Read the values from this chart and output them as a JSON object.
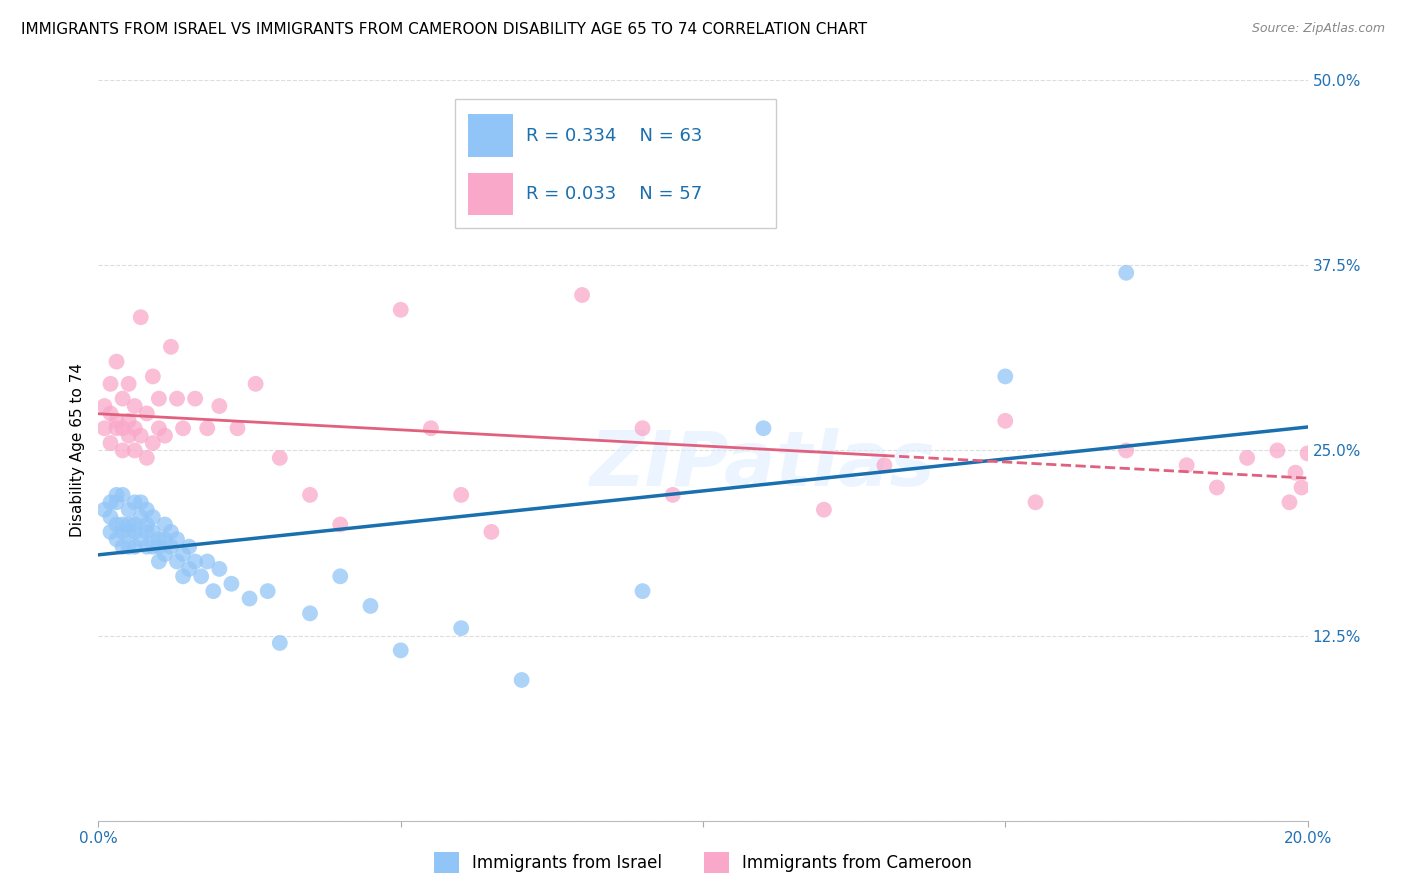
{
  "title": "IMMIGRANTS FROM ISRAEL VS IMMIGRANTS FROM CAMEROON DISABILITY AGE 65 TO 74 CORRELATION CHART",
  "source": "Source: ZipAtlas.com",
  "ylabel": "Disability Age 65 to 74",
  "xmin": 0.0,
  "xmax": 0.2,
  "ymin": 0.0,
  "ymax": 0.5,
  "xticks": [
    0.0,
    0.05,
    0.1,
    0.15,
    0.2
  ],
  "xtick_labels": [
    "0.0%",
    "",
    "",
    "",
    "20.0%"
  ],
  "yticks": [
    0.0,
    0.125,
    0.25,
    0.375,
    0.5
  ],
  "ytick_labels": [
    "",
    "12.5%",
    "25.0%",
    "37.5%",
    "50.0%"
  ],
  "legend_label1": "Immigrants from Israel",
  "legend_label2": "Immigrants from Cameroon",
  "R1": "0.334",
  "N1": "63",
  "R2": "0.033",
  "N2": "57",
  "color_israel": "#92c5f7",
  "color_cameroon": "#f9a8c9",
  "color_line_israel": "#1a6faf",
  "color_line_cameroon": "#e0607e",
  "watermark": "ZIPatlas",
  "background_color": "#ffffff",
  "grid_color": "#dddddd",
  "title_fontsize": 11,
  "axis_label_fontsize": 11,
  "tick_fontsize": 11,
  "legend_fontsize": 13,
  "israel_x": [
    0.001,
    0.002,
    0.002,
    0.002,
    0.003,
    0.003,
    0.003,
    0.003,
    0.004,
    0.004,
    0.004,
    0.004,
    0.005,
    0.005,
    0.005,
    0.005,
    0.006,
    0.006,
    0.006,
    0.006,
    0.007,
    0.007,
    0.007,
    0.008,
    0.008,
    0.008,
    0.008,
    0.009,
    0.009,
    0.009,
    0.01,
    0.01,
    0.01,
    0.011,
    0.011,
    0.011,
    0.012,
    0.012,
    0.013,
    0.013,
    0.014,
    0.014,
    0.015,
    0.015,
    0.016,
    0.017,
    0.018,
    0.019,
    0.02,
    0.022,
    0.025,
    0.028,
    0.03,
    0.035,
    0.04,
    0.045,
    0.05,
    0.06,
    0.07,
    0.09,
    0.11,
    0.15,
    0.17
  ],
  "israel_y": [
    0.21,
    0.215,
    0.195,
    0.205,
    0.2,
    0.22,
    0.19,
    0.215,
    0.2,
    0.185,
    0.195,
    0.22,
    0.2,
    0.21,
    0.185,
    0.195,
    0.2,
    0.185,
    0.215,
    0.195,
    0.205,
    0.19,
    0.215,
    0.195,
    0.185,
    0.21,
    0.2,
    0.195,
    0.185,
    0.205,
    0.19,
    0.185,
    0.175,
    0.19,
    0.2,
    0.18,
    0.185,
    0.195,
    0.175,
    0.19,
    0.18,
    0.165,
    0.185,
    0.17,
    0.175,
    0.165,
    0.175,
    0.155,
    0.17,
    0.16,
    0.15,
    0.155,
    0.12,
    0.14,
    0.165,
    0.145,
    0.115,
    0.13,
    0.095,
    0.155,
    0.265,
    0.3,
    0.37
  ],
  "cameroon_x": [
    0.001,
    0.001,
    0.002,
    0.002,
    0.002,
    0.003,
    0.003,
    0.003,
    0.004,
    0.004,
    0.004,
    0.005,
    0.005,
    0.005,
    0.006,
    0.006,
    0.006,
    0.007,
    0.007,
    0.008,
    0.008,
    0.009,
    0.009,
    0.01,
    0.01,
    0.011,
    0.012,
    0.013,
    0.014,
    0.016,
    0.018,
    0.02,
    0.023,
    0.026,
    0.03,
    0.035,
    0.04,
    0.05,
    0.055,
    0.06,
    0.065,
    0.08,
    0.09,
    0.095,
    0.12,
    0.13,
    0.15,
    0.155,
    0.17,
    0.18,
    0.185,
    0.19,
    0.195,
    0.197,
    0.198,
    0.199,
    0.2
  ],
  "cameroon_y": [
    0.265,
    0.28,
    0.255,
    0.275,
    0.295,
    0.265,
    0.31,
    0.27,
    0.265,
    0.25,
    0.285,
    0.27,
    0.26,
    0.295,
    0.265,
    0.28,
    0.25,
    0.26,
    0.34,
    0.245,
    0.275,
    0.255,
    0.3,
    0.265,
    0.285,
    0.26,
    0.32,
    0.285,
    0.265,
    0.285,
    0.265,
    0.28,
    0.265,
    0.295,
    0.245,
    0.22,
    0.2,
    0.345,
    0.265,
    0.22,
    0.195,
    0.355,
    0.265,
    0.22,
    0.21,
    0.24,
    0.27,
    0.215,
    0.25,
    0.24,
    0.225,
    0.245,
    0.25,
    0.215,
    0.235,
    0.225,
    0.248
  ]
}
